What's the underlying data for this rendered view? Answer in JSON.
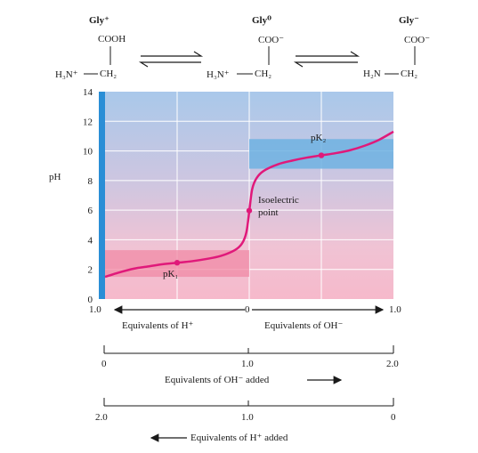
{
  "species": [
    {
      "name": "Gly⁺",
      "group": "COOH",
      "amine": "H₃N⁺",
      "carbon": "CH₂"
    },
    {
      "name": "Gly⁰",
      "group": "COO⁻",
      "amine": "H₃N⁺",
      "carbon": "CH₂"
    },
    {
      "name": "Gly⁻",
      "group": "COO⁻",
      "amine": "H₂N",
      "carbon": "CH₂"
    }
  ],
  "colors": {
    "curve": "#e0197a",
    "left_bar": "#2a8ed6",
    "band_blue": "#6fb2e2",
    "band_pink": "#f08aa6",
    "grid": "#ffffff"
  },
  "chart_data": {
    "type": "line",
    "ylabel": "pH",
    "ylim": [
      0,
      14
    ],
    "yticks": [
      "0",
      "2",
      "4",
      "6",
      "8",
      "10",
      "12",
      "14"
    ],
    "xlim": [
      0,
      2
    ],
    "x_top_labels": {
      "left": "1.0",
      "mid": "0",
      "right": "1.0"
    },
    "x_top_captions": {
      "left": "Equivalents of H⁺",
      "right": "Equivalents of OH⁻"
    },
    "series": [
      {
        "x": [
          0.0,
          0.1,
          0.2,
          0.3,
          0.4,
          0.5,
          0.6,
          0.7,
          0.8,
          0.9,
          0.95,
          0.98,
          1.0,
          1.02,
          1.05,
          1.1,
          1.2,
          1.3,
          1.4,
          1.5,
          1.6,
          1.7,
          1.8,
          1.9,
          2.0
        ],
        "y": [
          1.5,
          1.8,
          2.05,
          2.2,
          2.35,
          2.45,
          2.55,
          2.7,
          2.9,
          3.3,
          3.75,
          4.5,
          5.9,
          7.4,
          8.15,
          8.65,
          9.1,
          9.35,
          9.55,
          9.7,
          9.85,
          10.05,
          10.35,
          10.75,
          11.3
        ]
      }
    ],
    "annotations": [
      {
        "text": "pK₁",
        "x": 0.5,
        "y": 2.4
      },
      {
        "text": "pK₂",
        "x": 1.5,
        "y": 9.7
      },
      {
        "text": "Isoelectric",
        "x": 1.0,
        "y": 5.97
      },
      {
        "text": "point",
        "x": 1.0,
        "y": 5.97
      }
    ],
    "bottom_axis_1": {
      "ticks": [
        "0",
        "1.0",
        "2.0"
      ],
      "label": "Equivalents of OH⁻ added"
    },
    "bottom_axis_2": {
      "ticks": [
        "2.0",
        "1.0",
        "0"
      ],
      "label": "Equivalents of H⁺ added"
    }
  }
}
